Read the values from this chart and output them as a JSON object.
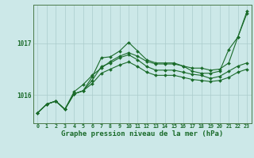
{
  "background_color": "#cce8e8",
  "grid_color": "#aacccc",
  "line_color": "#1a6b2a",
  "xlabel": "Graphe pression niveau de la mer (hPa)",
  "xlabel_fontsize": 6.5,
  "ytick_labels": [
    "1016",
    "1017"
  ],
  "ytick_values": [
    1016,
    1017
  ],
  "xlim": [
    -0.5,
    23.5
  ],
  "ylim": [
    1015.45,
    1017.75
  ],
  "series1": [
    1015.65,
    1015.82,
    1015.88,
    1015.72,
    1016.02,
    1016.08,
    1016.35,
    1016.72,
    1016.74,
    1016.85,
    1017.02,
    1016.85,
    1016.68,
    1016.62,
    1016.62,
    1016.62,
    1016.56,
    1016.52,
    1016.52,
    1016.48,
    1016.5,
    1016.62,
    1017.12,
    1017.58
  ],
  "series2": [
    1015.65,
    1015.82,
    1015.88,
    1015.72,
    1016.02,
    1016.08,
    1016.28,
    1016.55,
    1016.62,
    1016.72,
    1016.78,
    1016.68,
    1016.55,
    1016.48,
    1016.48,
    1016.48,
    1016.44,
    1016.4,
    1016.38,
    1016.32,
    1016.36,
    1016.46,
    1016.56,
    1016.62
  ],
  "series3": [
    1015.65,
    1015.82,
    1015.88,
    1015.72,
    1016.02,
    1016.08,
    1016.22,
    1016.42,
    1016.5,
    1016.58,
    1016.64,
    1016.55,
    1016.44,
    1016.38,
    1016.38,
    1016.38,
    1016.34,
    1016.3,
    1016.28,
    1016.26,
    1016.28,
    1016.34,
    1016.44,
    1016.5
  ],
  "series4": [
    1015.65,
    1015.82,
    1015.88,
    1015.72,
    1016.06,
    1016.2,
    1016.38,
    1016.52,
    1016.65,
    1016.75,
    1016.82,
    1016.75,
    1016.65,
    1016.6,
    1016.6,
    1016.6,
    1016.56,
    1016.46,
    1016.42,
    1016.42,
    1016.46,
    1016.88,
    1017.12,
    1017.62
  ],
  "marker_size": 2.0,
  "linewidth": 0.8
}
